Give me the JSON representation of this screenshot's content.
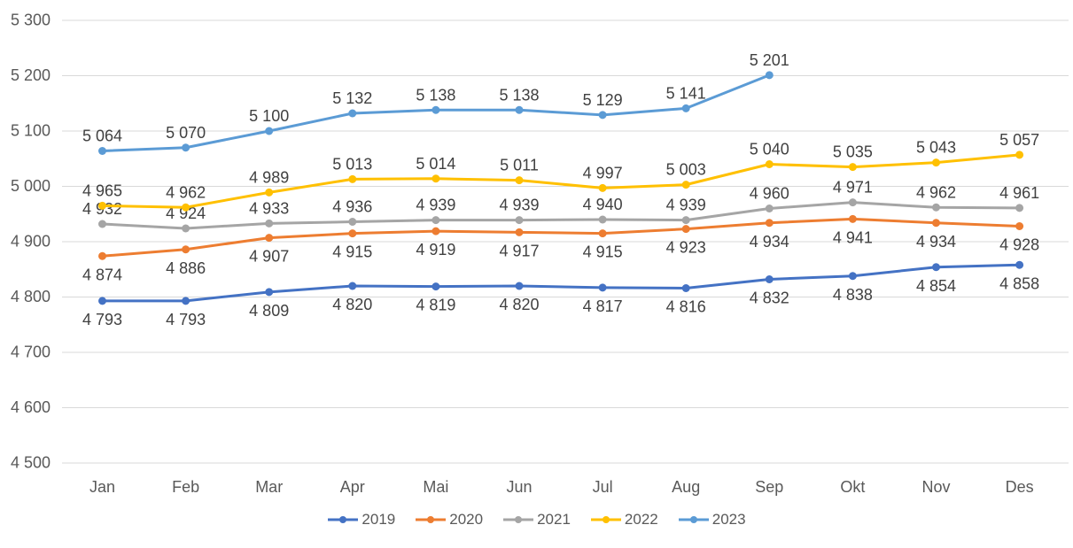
{
  "chart_data": {
    "type": "line",
    "categories": [
      "Jan",
      "Feb",
      "Mar",
      "Apr",
      "Mai",
      "Jun",
      "Jul",
      "Aug",
      "Sep",
      "Okt",
      "Nov",
      "Des"
    ],
    "series": [
      {
        "name": "2019",
        "color": "#4472C4",
        "label_position": "below",
        "values": [
          4793,
          4793,
          4809,
          4820,
          4819,
          4820,
          4817,
          4816,
          4832,
          4838,
          4854,
          4858
        ]
      },
      {
        "name": "2020",
        "color": "#ED7D31",
        "label_position": "below",
        "values": [
          4874,
          4886,
          4907,
          4915,
          4919,
          4917,
          4915,
          4923,
          4934,
          4941,
          4934,
          4928
        ]
      },
      {
        "name": "2021",
        "color": "#A5A5A5",
        "label_position": "above",
        "values": [
          4932,
          4924,
          4933,
          4936,
          4939,
          4939,
          4940,
          4939,
          4960,
          4971,
          4962,
          4961
        ]
      },
      {
        "name": "2022",
        "color": "#FFC000",
        "label_position": "above",
        "values": [
          4965,
          4962,
          4989,
          5013,
          5014,
          5011,
          4997,
          5003,
          5040,
          5035,
          5043,
          5057
        ]
      },
      {
        "name": "2023",
        "color": "#5B9BD5",
        "label_position": "above",
        "values": [
          5064,
          5070,
          5100,
          5132,
          5138,
          5138,
          5129,
          5141,
          5201,
          null,
          null,
          null
        ]
      }
    ],
    "ylim": [
      4500,
      5300
    ],
    "ytick_step": 100,
    "ytick_labels": [
      "4 500",
      "4 600",
      "4 700",
      "4 800",
      "4 900",
      "5 000",
      "5 100",
      "5 200",
      "5 300"
    ],
    "number_format": "space-thousands",
    "grid": true,
    "data_labels": true,
    "legend_entries": [
      "2019",
      "2020",
      "2021",
      "2022",
      "2023"
    ],
    "legend_position": "bottom",
    "colors": {
      "gridline": "#D9D9D9",
      "axis_text": "#595959",
      "data_label_text": "#404040",
      "background": "#FFFFFF"
    }
  }
}
